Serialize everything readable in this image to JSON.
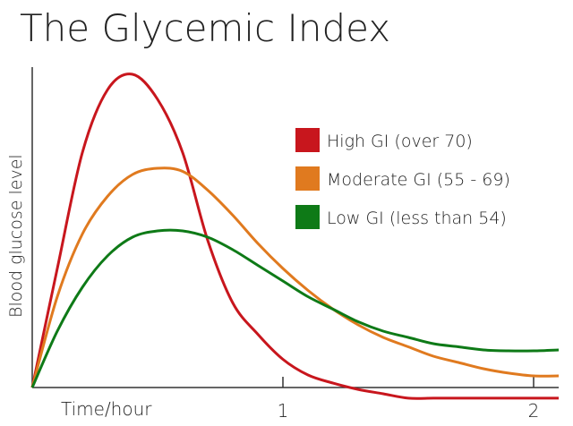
{
  "chart_data": {
    "type": "line",
    "title": "The Glycemic Index",
    "xlabel": "Time/hour",
    "ylabel": "Blood glucose level",
    "x": [
      0,
      0.1,
      0.2,
      0.3,
      0.4,
      0.5,
      0.6,
      0.7,
      0.8,
      0.9,
      1.0,
      1.1,
      1.2,
      1.3,
      1.4,
      1.5,
      1.6,
      1.7,
      1.8,
      1.9,
      2.0,
      2.1
    ],
    "xlim": [
      0,
      2.1
    ],
    "xticks": [
      1,
      2
    ],
    "ylim": [
      -4,
      102
    ],
    "legend": "upper right",
    "series": [
      {
        "name": "High GI (over 70)",
        "color": "#c8161d",
        "values": [
          0,
          38,
          75,
          95,
          100,
          92,
          75,
          47,
          27,
          17,
          9,
          4,
          1.4,
          -0.6,
          -2,
          -3.4,
          -3.4,
          -3.4,
          -3.4,
          -3.4,
          -3.4,
          -3.4
        ]
      },
      {
        "name": "Moderate GI (55 - 69)",
        "color": "#e07a1f",
        "values": [
          0,
          29,
          49,
          61,
          68,
          70,
          69,
          63,
          55,
          46,
          38,
          31,
          25,
          20,
          16,
          13,
          10,
          8,
          6,
          4.6,
          3.7,
          3.7
        ]
      },
      {
        "name": "Low GI (less than 54)",
        "color": "#0e7a17",
        "values": [
          0,
          18,
          32,
          42,
          48,
          50,
          50,
          48,
          44,
          39,
          34,
          29,
          25,
          21,
          18,
          16,
          14,
          13,
          12,
          11.7,
          11.7,
          12
        ]
      }
    ]
  }
}
